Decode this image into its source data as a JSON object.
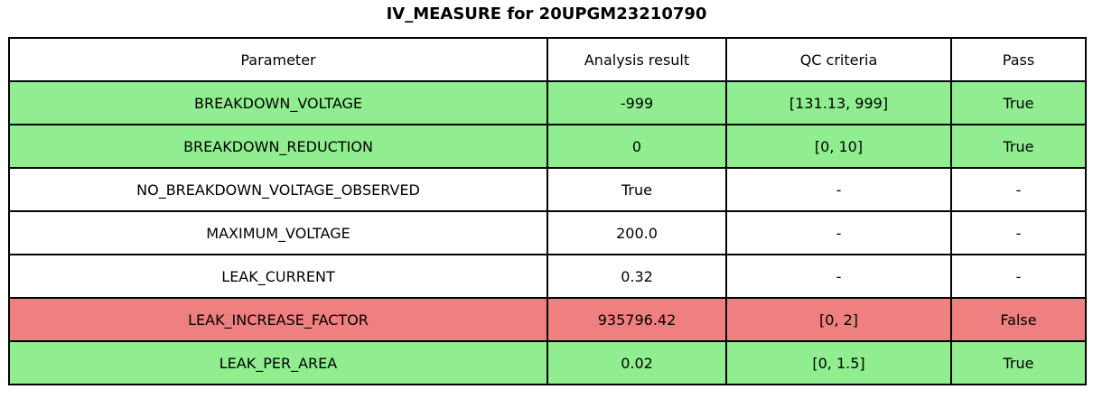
{
  "title": "IV_MEASURE for 20UPGM23210790",
  "chart_data": {
    "type": "table",
    "title": "IV_MEASURE for 20UPGM23210790",
    "columns": [
      "Parameter",
      "Analysis result",
      "QC criteria",
      "Pass"
    ],
    "rows": [
      [
        "BREAKDOWN_VOLTAGE",
        "-999",
        "[131.13, 999]",
        "True"
      ],
      [
        "BREAKDOWN_REDUCTION",
        "0",
        "[0, 10]",
        "True"
      ],
      [
        "NO_BREAKDOWN_VOLTAGE_OBSERVED",
        "True",
        "-",
        "-"
      ],
      [
        "MAXIMUM_VOLTAGE",
        "200.0",
        "-",
        "-"
      ],
      [
        "LEAK_CURRENT",
        "0.32",
        "-",
        "-"
      ],
      [
        "LEAK_INCREASE_FACTOR",
        "935796.42",
        "[0, 2]",
        "False"
      ],
      [
        "LEAK_PER_AREA",
        "0.02",
        "[0, 1.5]",
        "True"
      ]
    ],
    "row_status": [
      "pass",
      "pass",
      "none",
      "none",
      "none",
      "fail",
      "pass"
    ],
    "status_colors": {
      "pass": "#90EE90",
      "fail": "#F08080",
      "none": "#FFFFFF"
    },
    "header_background": "#FFFFFF",
    "border_color": "#000000"
  }
}
